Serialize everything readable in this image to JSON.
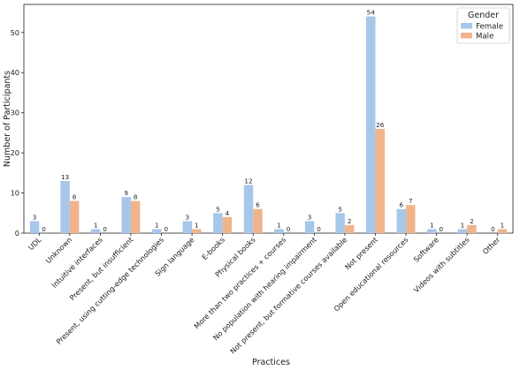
{
  "chart_data": {
    "type": "bar",
    "xlabel": "Practices",
    "ylabel": "Number of Participants",
    "ylim": [
      0,
      57
    ],
    "yticks": [
      0,
      10,
      20,
      30,
      40,
      50
    ],
    "grid": false,
    "legend": {
      "title": "Gender",
      "placement": "top-right"
    },
    "categories": [
      "UDL",
      "Unknown",
      "Intuitive interfaces",
      "Present, but insufficient",
      "Present, using cutting-edge technologies",
      "Sign language",
      "E-books",
      "Physical books",
      "More than two practices + courses",
      "No population with hearing impairment",
      "Not present, but formative courses available",
      "Not present",
      "Open educational resources",
      "Software",
      "Videos with subtitles",
      "Other"
    ],
    "series": [
      {
        "name": "Female",
        "color": "#a7c7ea",
        "values": [
          3,
          13,
          1,
          9,
          1,
          3,
          5,
          12,
          1,
          3,
          5,
          54,
          6,
          1,
          1,
          0
        ]
      },
      {
        "name": "Male",
        "color": "#f0b48c",
        "values": [
          0,
          8,
          0,
          8,
          0,
          1,
          4,
          6,
          0,
          0,
          2,
          26,
          7,
          0,
          2,
          1
        ]
      }
    ]
  }
}
